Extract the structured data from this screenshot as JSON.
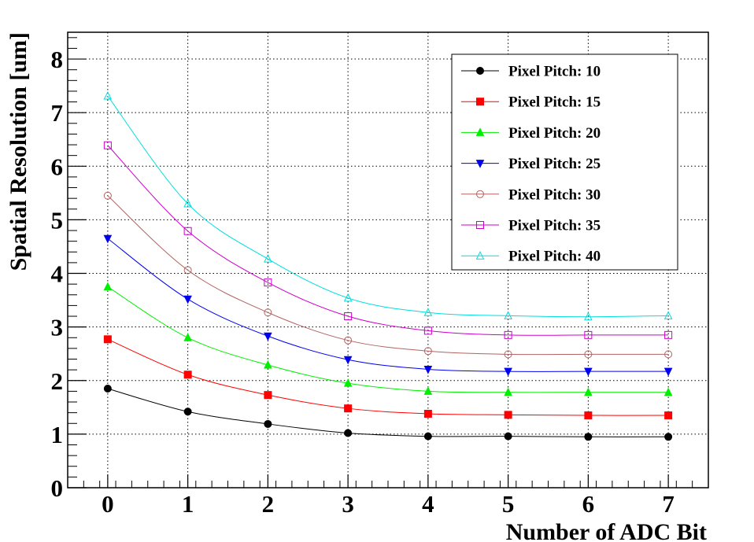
{
  "chart_data": {
    "type": "line",
    "title": "",
    "xlabel": "Number of ADC Bit",
    "ylabel": "Spatial Resolution [um]",
    "xlim": [
      -0.5,
      7.5
    ],
    "ylim": [
      0,
      8.5
    ],
    "grid": true,
    "legend_position": "top-right",
    "x_ticks": [
      "0",
      "1",
      "2",
      "3",
      "4",
      "5",
      "6",
      "7"
    ],
    "y_ticks": [
      "0",
      "1",
      "2",
      "3",
      "4",
      "5",
      "6",
      "7",
      "8"
    ],
    "x": [
      0,
      1,
      2,
      3,
      4,
      5,
      6,
      7
    ],
    "series": [
      {
        "name": "Pixel Pitch: 10",
        "color": "#000000",
        "marker": "circle-filled",
        "values": [
          1.85,
          1.42,
          1.19,
          1.02,
          0.96,
          0.96,
          0.95,
          0.95
        ]
      },
      {
        "name": "Pixel Pitch: 15",
        "color": "#ff0000",
        "marker": "square-filled",
        "values": [
          2.77,
          2.11,
          1.73,
          1.48,
          1.38,
          1.36,
          1.35,
          1.35
        ]
      },
      {
        "name": "Pixel Pitch: 20",
        "color": "#00ee00",
        "marker": "triangle-up-filled",
        "values": [
          3.75,
          2.8,
          2.29,
          1.95,
          1.8,
          1.78,
          1.78,
          1.78
        ]
      },
      {
        "name": "Pixel Pitch: 25",
        "color": "#0000ee",
        "marker": "triangle-down-filled",
        "values": [
          4.65,
          3.52,
          2.83,
          2.39,
          2.21,
          2.17,
          2.17,
          2.17
        ]
      },
      {
        "name": "Pixel Pitch: 30",
        "color": "#b06464",
        "marker": "circle-open",
        "values": [
          5.45,
          4.06,
          3.27,
          2.75,
          2.55,
          2.49,
          2.49,
          2.49
        ]
      },
      {
        "name": "Pixel Pitch: 35",
        "color": "#cc00cc",
        "marker": "square-open",
        "values": [
          6.39,
          4.79,
          3.83,
          3.2,
          2.93,
          2.85,
          2.85,
          2.85
        ]
      },
      {
        "name": "Pixel Pitch: 40",
        "color": "#00dddd",
        "marker": "triangle-up-open",
        "values": [
          7.31,
          5.3,
          4.27,
          3.54,
          3.27,
          3.21,
          3.19,
          3.21
        ]
      }
    ]
  }
}
